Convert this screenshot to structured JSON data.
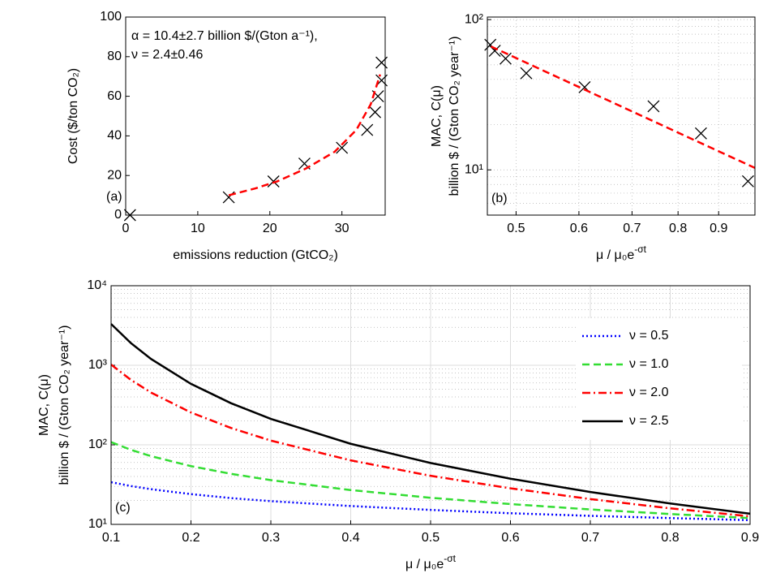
{
  "chart_data": [
    {
      "type": "scatter",
      "xlabel": "emissions reduction (GtCO₂)",
      "ylabel": "Cost ($/ton CO₂)",
      "annotations": [
        "α = 10.4±2.7 billion $/(Gton a⁻¹),",
        "ν = 2.4±0.46"
      ],
      "panel_label": "(a)",
      "xlim": [
        0,
        36
      ],
      "ylim": [
        0,
        100
      ],
      "xticks": [
        0,
        10,
        20,
        30
      ],
      "yticks": [
        0,
        20,
        40,
        60,
        80,
        100
      ],
      "grid": false,
      "series": [
        {
          "color": "#000000",
          "marker": "x",
          "x": [
            0.6,
            14.3,
            20.5,
            24.8,
            30,
            33.5,
            34.6,
            35,
            35.5,
            35.5
          ],
          "values": [
            0,
            9,
            17,
            26,
            34,
            43,
            52,
            60,
            68,
            77
          ]
        },
        {
          "color": "#ff0000",
          "line": "dashed",
          "x": [
            14.3,
            18,
            21,
            25,
            29,
            32,
            34,
            35.3
          ],
          "values": [
            10,
            13.5,
            17,
            23.5,
            32,
            43,
            56,
            71
          ]
        }
      ]
    },
    {
      "type": "scatter",
      "xlabel": {
        "text": "μ / μ₀e",
        "sup": "-σt"
      },
      "ylabel": [
        "MAC, C(μ)",
        "billion $ / (Gton CO₂ year⁻¹)"
      ],
      "panel_label": "(b)",
      "xscale": "log",
      "yscale": "log",
      "xlim": [
        0.46,
        1.0
      ],
      "ylim": [
        5,
        104
      ],
      "xticks": [
        0.5,
        0.6,
        0.7,
        0.8,
        0.9
      ],
      "yticks": [
        {
          "value": 10,
          "label": "10¹"
        },
        {
          "value": 100,
          "label": "10²"
        }
      ],
      "grid": "dotted",
      "yminor": [
        6,
        7,
        8,
        9,
        20,
        30,
        40,
        50,
        60,
        70,
        80,
        90
      ],
      "series": [
        {
          "color": "#000000",
          "marker": "x",
          "x": [
            0.464,
            0.47,
            0.485,
            0.515,
            0.61,
            0.745,
            0.855,
            0.98
          ],
          "values": [
            68,
            62,
            55,
            44,
            35.5,
            26.5,
            17.5,
            8.4
          ]
        },
        {
          "color": "#ff0000",
          "line": "dashed",
          "x": [
            0.465,
            0.5,
            0.6,
            0.7,
            0.8,
            0.9,
            1.0
          ],
          "values": [
            66.2,
            55.5,
            35.6,
            24.5,
            17.7,
            13.3,
            10.3
          ]
        }
      ]
    },
    {
      "type": "line",
      "xlabel": {
        "text": "μ / μ₀e",
        "sup": "-σt"
      },
      "ylabel": [
        "MAC, C(μ)",
        "billion $ / (Gton CO₂ year⁻¹)"
      ],
      "panel_label": "(c)",
      "yscale": "log",
      "xlim": [
        0.1,
        0.9
      ],
      "ylim": [
        10,
        10000
      ],
      "xticks": [
        0.1,
        0.2,
        0.3,
        0.4,
        0.5,
        0.6,
        0.7,
        0.8,
        0.9
      ],
      "yticks": [
        {
          "value": 10,
          "label": "10¹"
        },
        {
          "value": 100,
          "label": "10²"
        },
        {
          "value": 1000,
          "label": "10³"
        },
        {
          "value": 10000,
          "label": "10⁴"
        }
      ],
      "grid": "solid",
      "yminor": [
        20,
        30,
        40,
        50,
        60,
        70,
        80,
        90,
        200,
        300,
        400,
        500,
        600,
        700,
        800,
        900,
        2000,
        3000,
        4000,
        5000,
        6000,
        7000,
        8000,
        9000
      ],
      "legend": "upper right",
      "x": [
        0.1,
        0.125,
        0.15,
        0.2,
        0.25,
        0.3,
        0.4,
        0.5,
        0.6,
        0.7,
        0.8,
        0.9
      ],
      "series": [
        {
          "name": "ν = 0.5",
          "color": "#0000ff",
          "line": "dotted",
          "values": [
            33.9,
            30.3,
            27.7,
            24.0,
            21.4,
            19.6,
            17.0,
            15.2,
            13.8,
            12.8,
            12.0,
            11.3
          ]
        },
        {
          "name": "ν = 1.0",
          "color": "#33dd33",
          "line": "dashed",
          "values": [
            108,
            86.4,
            72,
            54,
            43.2,
            36,
            27,
            21.6,
            18,
            15.4,
            13.5,
            12
          ]
        },
        {
          "name": "ν = 2.0",
          "color": "#ff0000",
          "line": "dashdot",
          "values": [
            1021,
            653,
            454,
            255,
            163,
            113,
            63.8,
            40.8,
            28.4,
            20.8,
            15.9,
            12.6
          ]
        },
        {
          "name": "ν = 2.5",
          "color": "#000000",
          "line": "solid",
          "values": [
            3305,
            1892,
            1200,
            584,
            334,
            212,
            103,
            59.1,
            37.5,
            25.5,
            18.3,
            13.6
          ]
        }
      ]
    }
  ]
}
